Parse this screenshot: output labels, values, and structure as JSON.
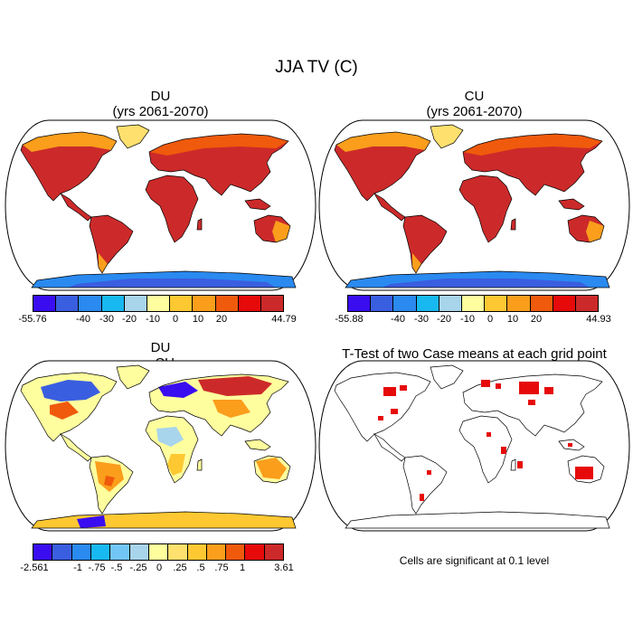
{
  "figure_title": "JJA TV (C)",
  "panels": [
    {
      "title": "DU",
      "subtitle": "(yrs 2061-2070)"
    },
    {
      "title": "CU",
      "subtitle": "(yrs 2061-2070)"
    },
    {
      "title": "DU",
      "subtitle": "- CU"
    },
    {
      "title": "T-Test of two Case means at each grid point"
    }
  ],
  "colorbars": [
    {
      "colors": [
        "#3a0df0",
        "#3a5ee0",
        "#2a8af0",
        "#18b8f0",
        "#a8d4ec",
        "#fefe9e",
        "#fec832",
        "#fa9e1c",
        "#f05a0c",
        "#e60a0a",
        "#cc2a2a"
      ],
      "labels": [
        "-55.76",
        "-40",
        "-30",
        "-20",
        "-10",
        "0",
        "10",
        "20",
        "44.79"
      ]
    },
    {
      "colors": [
        "#3a0df0",
        "#3a5ee0",
        "#2a8af0",
        "#18b8f0",
        "#a8d4ec",
        "#fefe9e",
        "#fec832",
        "#fa9e1c",
        "#f05a0c",
        "#e60a0a",
        "#cc2a2a"
      ],
      "labels": [
        "-55.88",
        "-40",
        "-30",
        "-20",
        "-10",
        "0",
        "10",
        "20",
        "44.93"
      ]
    },
    {
      "colors": [
        "#3a0df0",
        "#3a5ee0",
        "#2a8af0",
        "#18b8f0",
        "#72c6f6",
        "#a8d4ec",
        "#fefe9e",
        "#fee06e",
        "#fec832",
        "#fa9e1c",
        "#f05a0c",
        "#e60a0a",
        "#cc2a2a"
      ],
      "labels": [
        "-2.561",
        "-1",
        "-.75",
        "-.5",
        "-.25",
        "0",
        ".25",
        ".5",
        ".75",
        "1",
        "3.61"
      ]
    }
  ],
  "significance_note": "Cells are significant at 0.1 level",
  "colors": {
    "sig": "#e60a0a",
    "land_outline": "#000000"
  }
}
